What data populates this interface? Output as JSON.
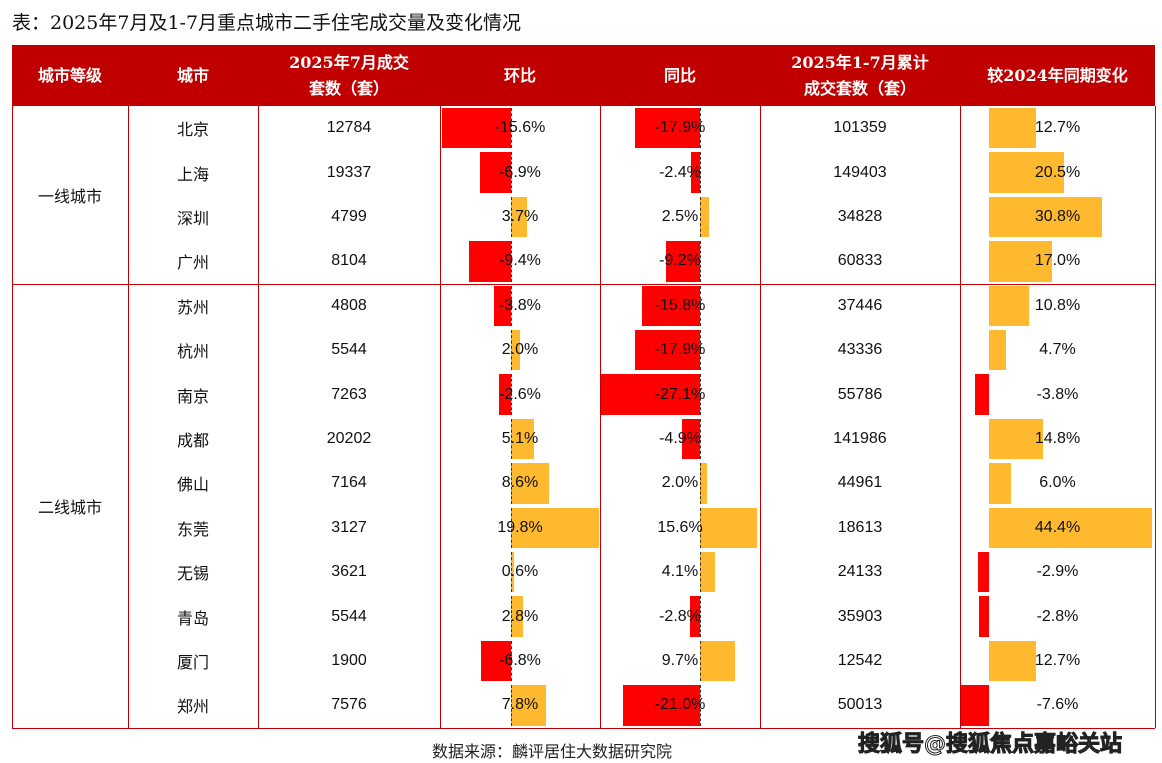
{
  "title": "表：2025年7月及1-7月重点城市二手住宅成交量及变化情况",
  "chart_data": {
    "type": "table",
    "columns": [
      "城市等级",
      "城市",
      "2025年7月成交套数（套）",
      "环比",
      "同比",
      "2025年1-7月累计成交套数（套）",
      "较2024年同期变化"
    ],
    "tiers": [
      {
        "name": "一线城市",
        "rows": 4
      },
      {
        "name": "二线城市",
        "rows": 10
      }
    ],
    "rows": [
      {
        "city": "北京",
        "july": "12784",
        "mom": -15.6,
        "yoy": -17.9,
        "cum": "101359",
        "chg": 12.7
      },
      {
        "city": "上海",
        "july": "19337",
        "mom": -6.9,
        "yoy": -2.4,
        "cum": "149403",
        "chg": 20.5
      },
      {
        "city": "深圳",
        "july": "4799",
        "mom": 3.7,
        "yoy": 2.5,
        "cum": "34828",
        "chg": 30.8
      },
      {
        "city": "广州",
        "july": "8104",
        "mom": -9.4,
        "yoy": -9.2,
        "cum": "60833",
        "chg": 17.0
      },
      {
        "city": "苏州",
        "july": "4808",
        "mom": -3.8,
        "yoy": -15.8,
        "cum": "37446",
        "chg": 10.8
      },
      {
        "city": "杭州",
        "july": "5544",
        "mom": 2.0,
        "yoy": -17.9,
        "cum": "43336",
        "chg": 4.7
      },
      {
        "city": "南京",
        "july": "7263",
        "mom": -2.6,
        "yoy": -27.1,
        "cum": "55786",
        "chg": -3.8
      },
      {
        "city": "成都",
        "july": "20202",
        "mom": 5.1,
        "yoy": -4.9,
        "cum": "141986",
        "chg": 14.8
      },
      {
        "city": "佛山",
        "july": "7164",
        "mom": 8.6,
        "yoy": 2.0,
        "cum": "44961",
        "chg": 6.0
      },
      {
        "city": "东莞",
        "july": "3127",
        "mom": 19.8,
        "yoy": 15.6,
        "cum": "18613",
        "chg": 44.4
      },
      {
        "city": "无锡",
        "july": "3621",
        "mom": 0.6,
        "yoy": 4.1,
        "cum": "24133",
        "chg": -2.9
      },
      {
        "city": "青岛",
        "july": "5544",
        "mom": 2.8,
        "yoy": -2.8,
        "cum": "35903",
        "chg": -2.8
      },
      {
        "city": "厦门",
        "july": "1900",
        "mom": -6.8,
        "yoy": 9.7,
        "cum": "12542",
        "chg": 12.7
      },
      {
        "city": "郑州",
        "july": "7576",
        "mom": 7.8,
        "yoy": -21.0,
        "cum": "50013",
        "chg": -7.6
      }
    ],
    "colors": {
      "header": "#C00000",
      "negative": "#FF0000",
      "positive": "#FFB92E"
    }
  },
  "source": "数据来源：麟评居住大数据研究院",
  "watermark": "搜狐号@搜狐焦点嘉峪关站"
}
